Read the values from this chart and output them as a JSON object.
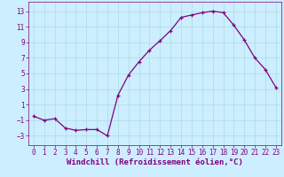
{
  "x": [
    0,
    1,
    2,
    3,
    4,
    5,
    6,
    7,
    8,
    9,
    10,
    11,
    12,
    13,
    14,
    15,
    16,
    17,
    18,
    19,
    20,
    21,
    22,
    23
  ],
  "y": [
    -0.5,
    -1.0,
    -0.8,
    -2.0,
    -2.3,
    -2.2,
    -2.2,
    -3.0,
    2.2,
    4.8,
    6.5,
    8.0,
    9.2,
    10.5,
    12.2,
    12.5,
    12.8,
    13.0,
    12.8,
    11.2,
    9.3,
    7.0,
    5.5,
    3.2
  ],
  "line_color": "#800080",
  "marker": "+",
  "marker_size": 3,
  "background_color": "#cceeff",
  "grid_color": "#aadddd",
  "xlabel": "Windchill (Refroidissement éolien,°C)",
  "ylabel": "",
  "xlim": [
    -0.5,
    23.5
  ],
  "ylim": [
    -4.2,
    14.2
  ],
  "yticks": [
    -3,
    -1,
    1,
    3,
    5,
    7,
    9,
    11,
    13
  ],
  "xticks": [
    0,
    1,
    2,
    3,
    4,
    5,
    6,
    7,
    8,
    9,
    10,
    11,
    12,
    13,
    14,
    15,
    16,
    17,
    18,
    19,
    20,
    21,
    22,
    23
  ],
  "tick_color": "#800080",
  "label_color": "#800080",
  "tick_fontsize": 5.5,
  "xlabel_fontsize": 6.5
}
